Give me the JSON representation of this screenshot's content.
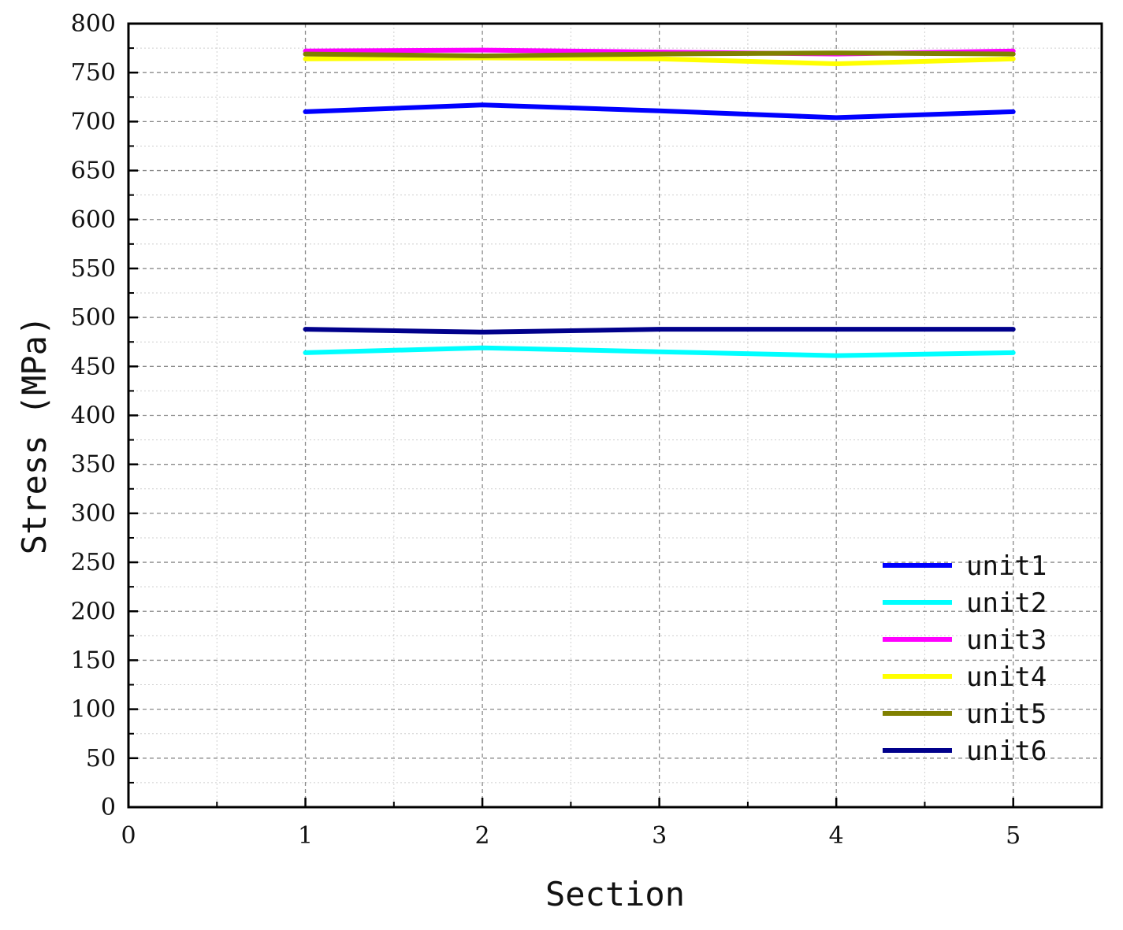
{
  "chart_data": {
    "type": "line",
    "title": "",
    "xlabel": "Section",
    "ylabel": "Stress (MPa)",
    "xlim": [
      0,
      5.5
    ],
    "ylim": [
      0,
      800
    ],
    "x_ticks": [
      0,
      1,
      2,
      3,
      4,
      5
    ],
    "y_ticks": [
      0,
      50,
      100,
      150,
      200,
      250,
      300,
      350,
      400,
      450,
      500,
      550,
      600,
      650,
      700,
      750,
      800
    ],
    "grid": true,
    "legend_position": "bottom-right",
    "x": [
      1,
      2,
      3,
      4,
      5
    ],
    "series": [
      {
        "name": "unit1",
        "color": "#0000ff",
        "values": [
          710,
          717,
          711,
          704,
          710
        ]
      },
      {
        "name": "unit2",
        "color": "#00ffff",
        "values": [
          464,
          469,
          465,
          461,
          464
        ]
      },
      {
        "name": "unit3",
        "color": "#ff00ff",
        "values": [
          772,
          773,
          771,
          769,
          772
        ]
      },
      {
        "name": "unit4",
        "color": "#ffff00",
        "values": [
          764,
          765,
          764,
          759,
          764
        ]
      },
      {
        "name": "unit5",
        "color": "#808000",
        "values": [
          769,
          767,
          769,
          770,
          769
        ]
      },
      {
        "name": "unit6",
        "color": "#00008b",
        "values": [
          488,
          485,
          488,
          488,
          488
        ]
      }
    ]
  }
}
